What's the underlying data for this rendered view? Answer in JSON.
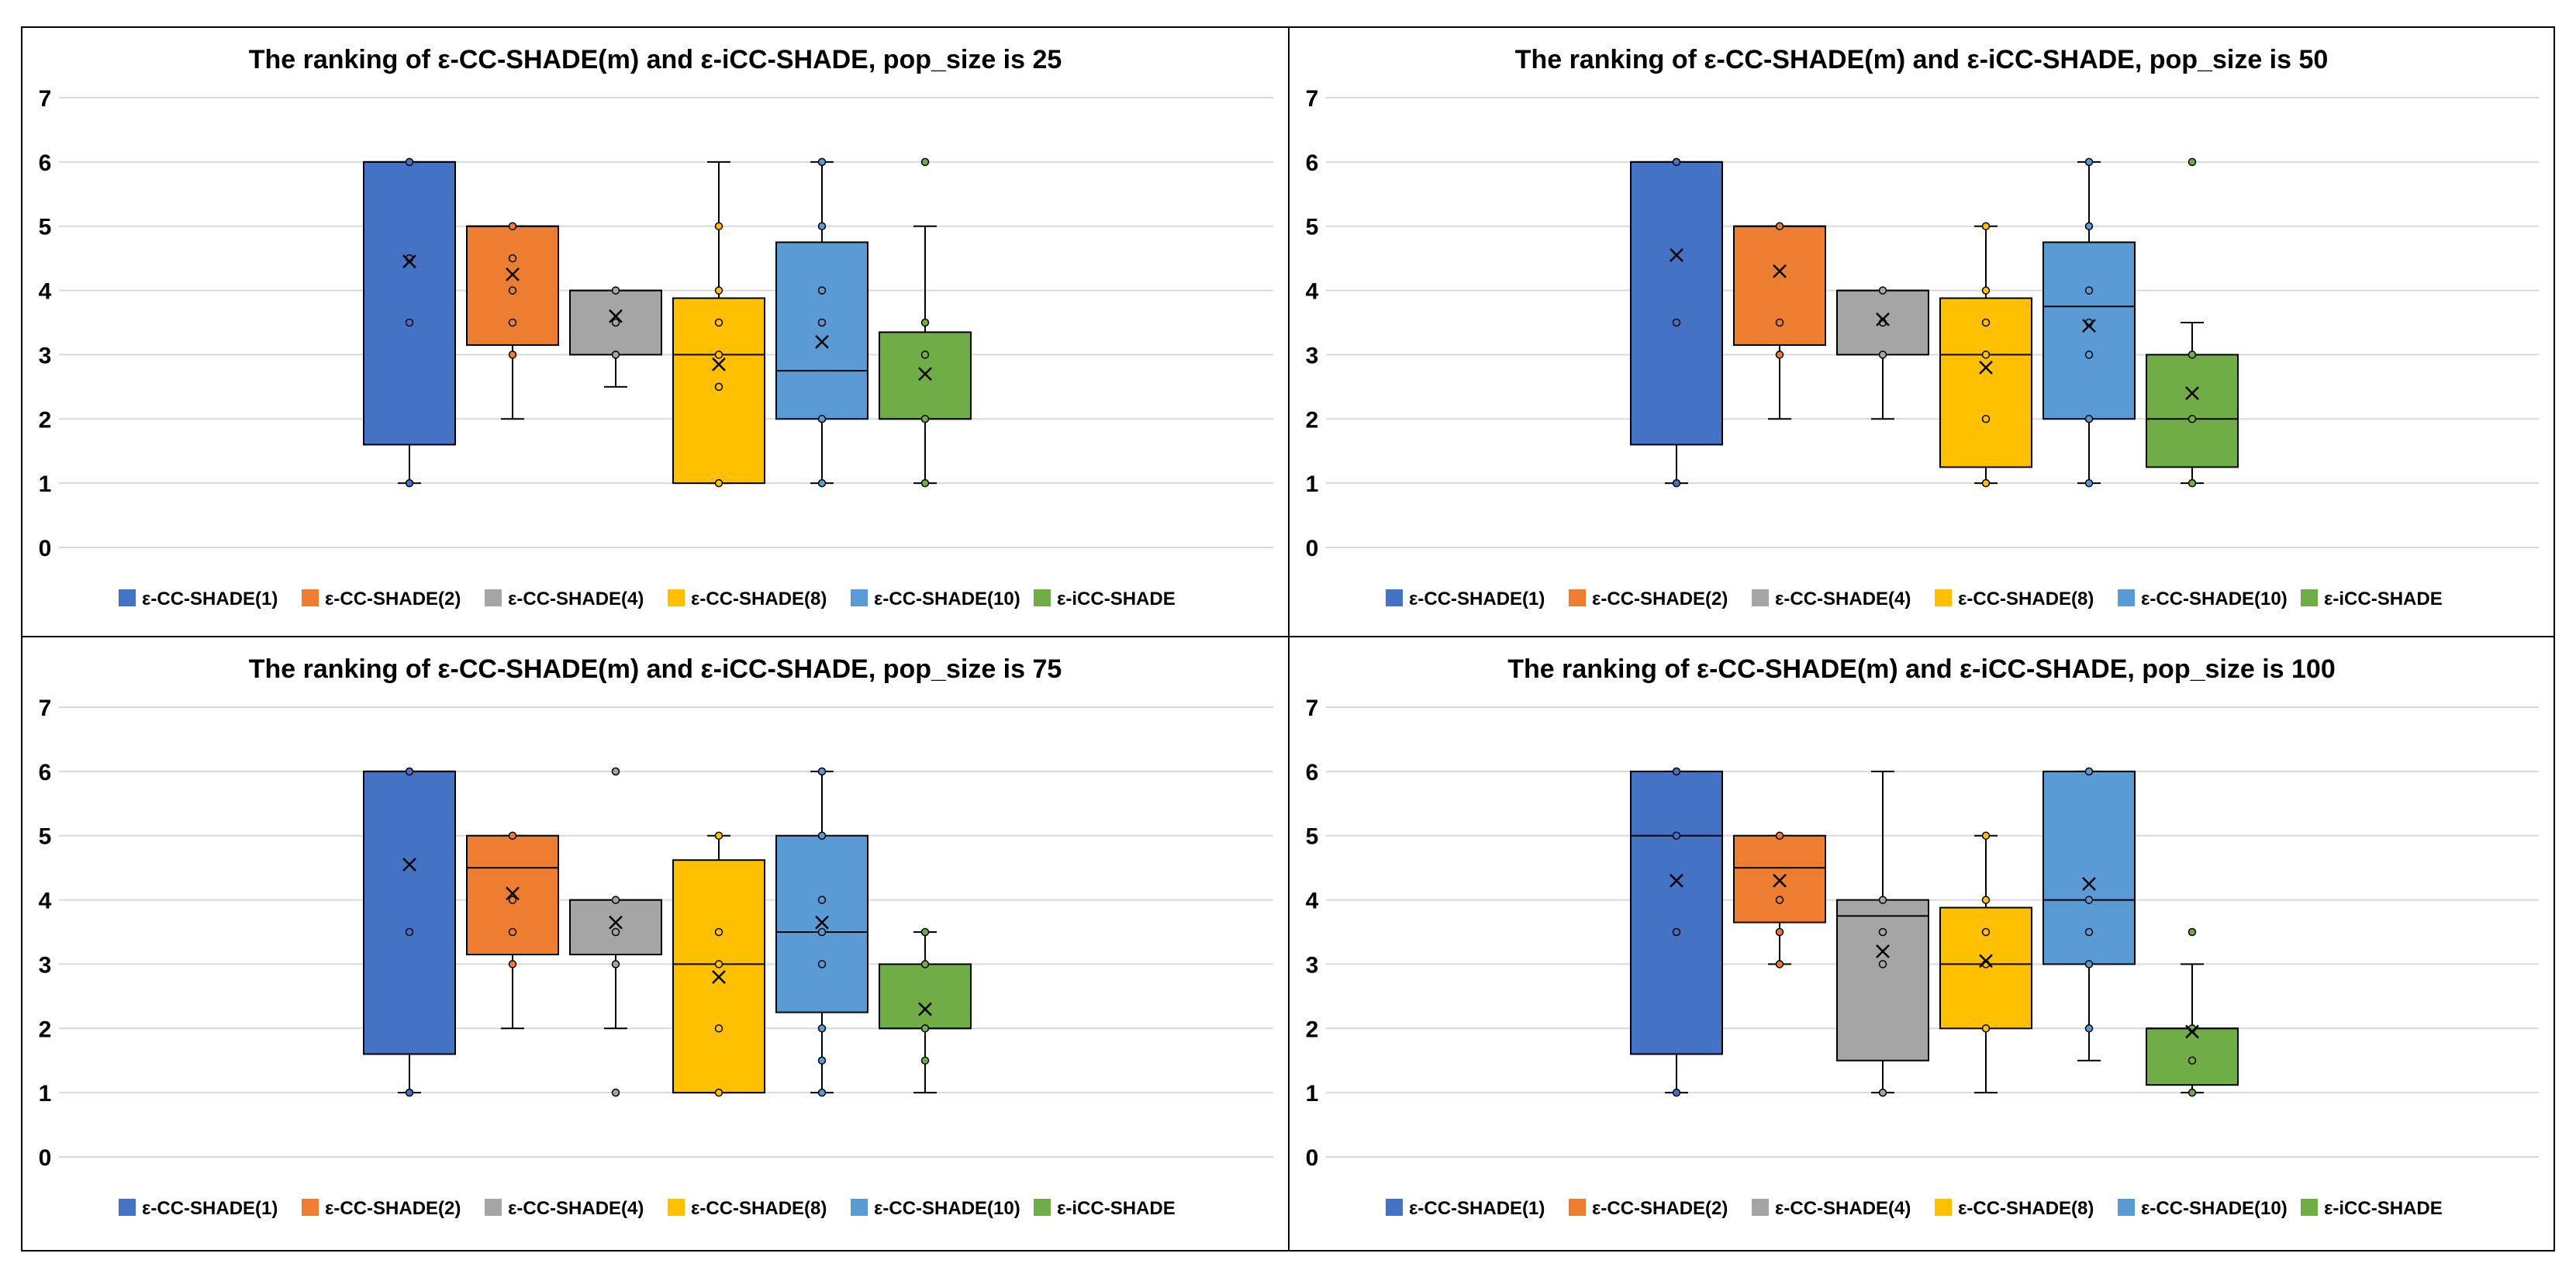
{
  "series_names": [
    "ε-CC-SHADE(1)",
    "ε-CC-SHADE(2)",
    "ε-CC-SHADE(4)",
    "ε-CC-SHADE(8)",
    "ε-CC-SHADE(10)",
    "ε-iCC-SHADE"
  ],
  "colors": {
    "series": [
      "#4472c4",
      "#ed7d31",
      "#a5a5a5",
      "#ffc000",
      "#5b9bd5",
      "#70ad47"
    ],
    "grid": "#d9d9d9",
    "frame": "#000000",
    "text": "#000000"
  },
  "chart_data": [
    {
      "type": "box",
      "title": "The ranking of ε-CC-SHADE(m) and ε-iCC-SHADE, pop_size is 25",
      "ylim": [
        0,
        7
      ],
      "yticks": [
        0,
        1,
        2,
        3,
        4,
        5,
        6,
        7
      ],
      "legend": "bottom",
      "series": [
        {
          "name": "ε-CC-SHADE(1)",
          "min": 1,
          "q1": 1.6,
          "median": 6,
          "q3": 6,
          "max": 6,
          "mean": 4.45,
          "points": [
            1,
            3.5,
            4.5,
            6
          ]
        },
        {
          "name": "ε-CC-SHADE(2)",
          "min": 2,
          "q1": 3.15,
          "median": 5,
          "q3": 5,
          "max": 5,
          "mean": 4.25,
          "points": [
            3,
            3.5,
            4,
            4.5,
            5
          ]
        },
        {
          "name": "ε-CC-SHADE(4)",
          "min": 2.5,
          "q1": 3,
          "median": 4,
          "q3": 4,
          "max": 4,
          "mean": 3.6,
          "points": [
            3,
            3.5,
            4
          ]
        },
        {
          "name": "ε-CC-SHADE(8)",
          "min": 1,
          "q1": 1,
          "median": 3,
          "q3": 3.88,
          "max": 6,
          "mean": 2.85,
          "points": [
            1,
            2.5,
            3,
            3.5,
            4,
            5
          ]
        },
        {
          "name": "ε-CC-SHADE(10)",
          "min": 1,
          "q1": 2,
          "median": 2.75,
          "q3": 4.75,
          "max": 6,
          "mean": 3.2,
          "points": [
            1,
            2,
            3.5,
            4,
            5,
            6
          ]
        },
        {
          "name": "ε-iCC-SHADE",
          "min": 1,
          "q1": 2,
          "median": 2,
          "q3": 3.35,
          "max": 5,
          "mean": 2.7,
          "points": [
            1,
            2,
            3,
            3.5,
            6
          ]
        }
      ]
    },
    {
      "type": "box",
      "title": "The ranking of ε-CC-SHADE(m) and ε-iCC-SHADE, pop_size is 50",
      "ylim": [
        0,
        7
      ],
      "yticks": [
        0,
        1,
        2,
        3,
        4,
        5,
        6,
        7
      ],
      "legend": "bottom",
      "series": [
        {
          "name": "ε-CC-SHADE(1)",
          "min": 1,
          "q1": 1.6,
          "median": 6,
          "q3": 6,
          "max": 6,
          "mean": 4.55,
          "points": [
            1,
            3.5,
            6
          ]
        },
        {
          "name": "ε-CC-SHADE(2)",
          "min": 2,
          "q1": 3.15,
          "median": 5,
          "q3": 5,
          "max": 5,
          "mean": 4.3,
          "points": [
            3,
            3.5,
            5
          ]
        },
        {
          "name": "ε-CC-SHADE(4)",
          "min": 2,
          "q1": 3,
          "median": 4,
          "q3": 4,
          "max": 4,
          "mean": 3.55,
          "points": [
            3,
            3.5,
            4
          ]
        },
        {
          "name": "ε-CC-SHADE(8)",
          "min": 1,
          "q1": 1.25,
          "median": 3,
          "q3": 3.88,
          "max": 5,
          "mean": 2.8,
          "points": [
            1,
            2,
            3,
            3.5,
            4,
            5
          ]
        },
        {
          "name": "ε-CC-SHADE(10)",
          "min": 1,
          "q1": 2,
          "median": 3.75,
          "q3": 4.75,
          "max": 6,
          "mean": 3.45,
          "points": [
            1,
            2,
            3,
            3.5,
            4,
            5,
            6
          ]
        },
        {
          "name": "ε-iCC-SHADE",
          "min": 1,
          "q1": 1.25,
          "median": 2,
          "q3": 3,
          "max": 3.5,
          "mean": 2.4,
          "points": [
            1,
            2,
            3,
            6
          ]
        }
      ]
    },
    {
      "type": "box",
      "title": "The ranking of ε-CC-SHADE(m) and ε-iCC-SHADE, pop_size is 75",
      "ylim": [
        0,
        7
      ],
      "yticks": [
        0,
        1,
        2,
        3,
        4,
        5,
        6,
        7
      ],
      "legend": "bottom",
      "series": [
        {
          "name": "ε-CC-SHADE(1)",
          "min": 1,
          "q1": 1.6,
          "median": 6,
          "q3": 6,
          "max": 6,
          "mean": 4.55,
          "points": [
            1,
            3.5,
            6
          ]
        },
        {
          "name": "ε-CC-SHADE(2)",
          "min": 2,
          "q1": 3.15,
          "median": 4.5,
          "q3": 5,
          "max": 5,
          "mean": 4.1,
          "points": [
            3,
            3.5,
            4,
            5
          ]
        },
        {
          "name": "ε-CC-SHADE(4)",
          "min": 2,
          "q1": 3.15,
          "median": 4,
          "q3": 4,
          "max": 4,
          "mean": 3.65,
          "points": [
            1,
            3,
            3.5,
            4,
            6
          ]
        },
        {
          "name": "ε-CC-SHADE(8)",
          "min": 1,
          "q1": 1,
          "median": 3,
          "q3": 4.62,
          "max": 5,
          "mean": 2.8,
          "points": [
            1,
            2,
            3,
            3.5,
            5
          ]
        },
        {
          "name": "ε-CC-SHADE(10)",
          "min": 1,
          "q1": 2.25,
          "median": 3.5,
          "q3": 5,
          "max": 6,
          "mean": 3.65,
          "points": [
            1,
            1.5,
            2,
            3,
            3.5,
            4,
            5,
            6
          ]
        },
        {
          "name": "ε-iCC-SHADE",
          "min": 1,
          "q1": 2,
          "median": 2,
          "q3": 3,
          "max": 3.5,
          "mean": 2.3,
          "points": [
            1.5,
            2,
            3,
            3.5
          ]
        }
      ]
    },
    {
      "type": "box",
      "title": "The ranking of ε-CC-SHADE(m) and ε-iCC-SHADE, pop_size is 100",
      "ylim": [
        0,
        7
      ],
      "yticks": [
        0,
        1,
        2,
        3,
        4,
        5,
        6,
        7
      ],
      "legend": "bottom",
      "series": [
        {
          "name": "ε-CC-SHADE(1)",
          "min": 1,
          "q1": 1.6,
          "median": 5,
          "q3": 6,
          "max": 6,
          "mean": 4.3,
          "points": [
            1,
            3.5,
            5,
            6
          ]
        },
        {
          "name": "ε-CC-SHADE(2)",
          "min": 3,
          "q1": 3.65,
          "median": 4.5,
          "q3": 5,
          "max": 5,
          "mean": 4.3,
          "points": [
            3,
            3.5,
            4,
            5
          ]
        },
        {
          "name": "ε-CC-SHADE(4)",
          "min": 1,
          "q1": 1.5,
          "median": 3.75,
          "q3": 4,
          "max": 6,
          "mean": 3.2,
          "points": [
            1,
            3,
            3.5,
            4
          ]
        },
        {
          "name": "ε-CC-SHADE(8)",
          "min": 1,
          "q1": 2,
          "median": 3,
          "q3": 3.88,
          "max": 5,
          "mean": 3.05,
          "points": [
            2,
            3,
            3.5,
            4,
            5
          ]
        },
        {
          "name": "ε-CC-SHADE(10)",
          "min": 1.5,
          "q1": 3,
          "median": 4,
          "q3": 6,
          "max": 6,
          "mean": 4.25,
          "points": [
            2,
            3,
            3.5,
            4,
            6
          ]
        },
        {
          "name": "ε-iCC-SHADE",
          "min": 1,
          "q1": 1.12,
          "median": 2,
          "q3": 2,
          "max": 3,
          "mean": 1.95,
          "points": [
            1,
            1.5,
            2,
            3.5
          ]
        }
      ]
    }
  ]
}
